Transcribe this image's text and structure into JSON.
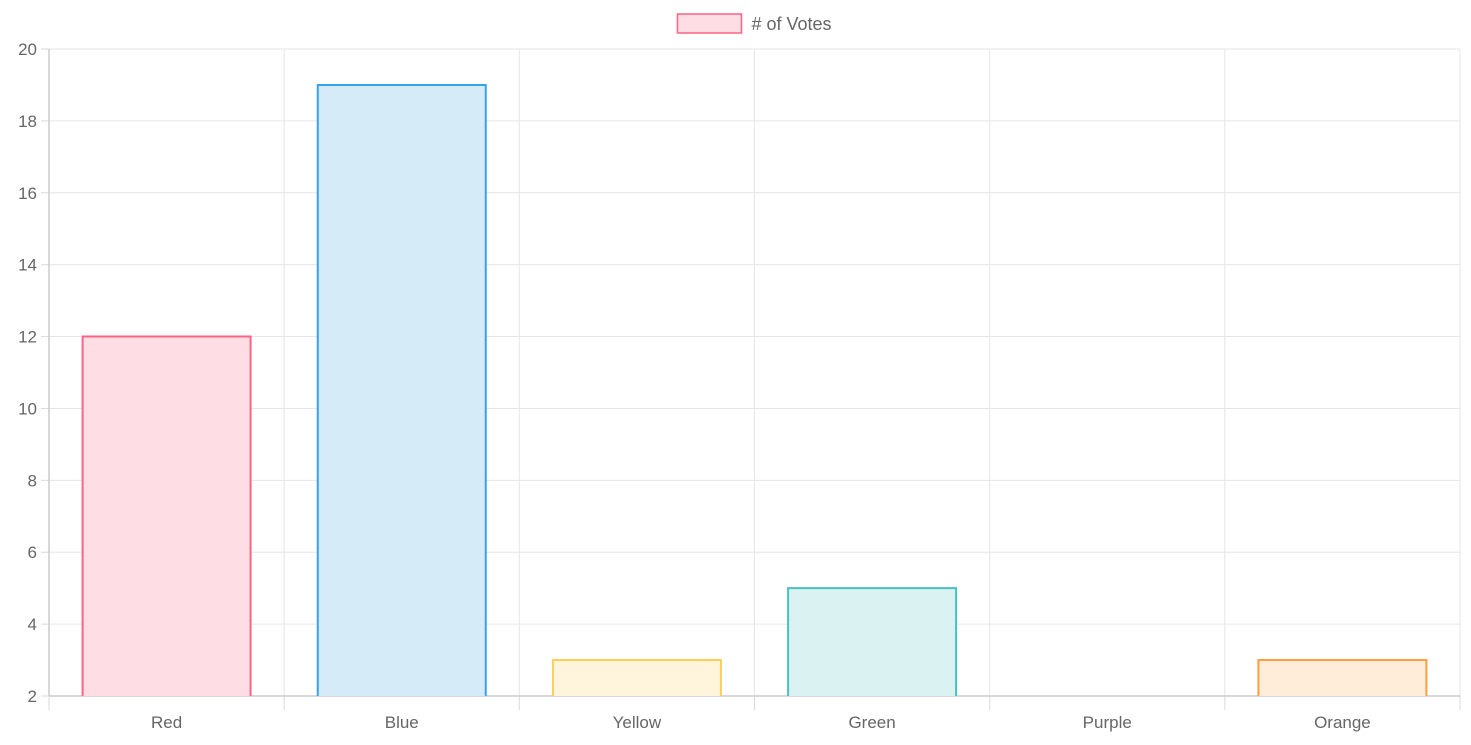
{
  "chart_data": {
    "type": "bar",
    "categories": [
      "Red",
      "Blue",
      "Yellow",
      "Green",
      "Purple",
      "Orange"
    ],
    "series": [
      {
        "name": "# of Votes",
        "values": [
          12,
          19,
          3,
          5,
          2,
          3
        ]
      }
    ],
    "bar_colors": {
      "fill": [
        "#ffdde4",
        "#d6ebf8",
        "#fff4dc",
        "#daf2f1",
        "#eee6ff",
        "#ffecd9"
      ],
      "border": [
        "#ff6384",
        "#36a2eb",
        "#ffce56",
        "#4bc0c0",
        "#9966ff",
        "#ff9f40"
      ]
    },
    "legend_swatch": {
      "fill": "#ffdde4",
      "border": "#ff6384"
    },
    "ylim": [
      2,
      20
    ],
    "yticks": [
      2,
      4,
      6,
      8,
      10,
      12,
      14,
      16,
      18,
      20
    ],
    "grid": true,
    "legend_position": "top-center",
    "title": "",
    "xlabel": "",
    "ylabel": ""
  }
}
